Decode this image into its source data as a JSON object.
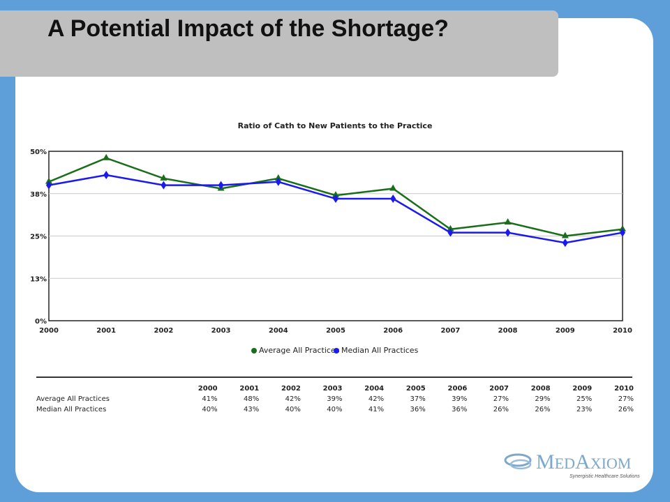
{
  "slide": {
    "title": "A Potential Impact of the Shortage?"
  },
  "colors": {
    "background": "#5e9fd9",
    "title_box": "#bfbfbf",
    "average_series": "#1a6e1a",
    "median_series": "#1a1aee"
  },
  "chart_data": {
    "type": "line",
    "title": "Ratio of Cath to New Patients to the Practice",
    "x": [
      "2000",
      "2001",
      "2002",
      "2003",
      "2004",
      "2005",
      "2006",
      "2007",
      "2008",
      "2009",
      "2010"
    ],
    "yticks": [
      "0%",
      "13%",
      "25%",
      "38%",
      "50%"
    ],
    "ylim": [
      0,
      50
    ],
    "grid": true,
    "legend_position": "bottom",
    "series": [
      {
        "name": "Average All Practices",
        "marker": "triangle",
        "values": [
          41,
          48,
          42,
          39,
          42,
          37,
          39,
          27,
          29,
          25,
          27
        ]
      },
      {
        "name": "Median All Practices",
        "marker": "diamond",
        "values": [
          40,
          43,
          40,
          40,
          41,
          36,
          36,
          26,
          26,
          23,
          26
        ]
      }
    ]
  },
  "table": {
    "headers": [
      "2000",
      "2001",
      "2002",
      "2003",
      "2004",
      "2005",
      "2006",
      "2007",
      "2008",
      "2009",
      "2010"
    ],
    "rows": [
      {
        "label": "Average All Practices",
        "values": [
          "41%",
          "48%",
          "42%",
          "39%",
          "42%",
          "37%",
          "39%",
          "27%",
          "29%",
          "25%",
          "27%"
        ]
      },
      {
        "label": "Median All Practices",
        "values": [
          "40%",
          "43%",
          "40%",
          "40%",
          "41%",
          "36%",
          "36%",
          "26%",
          "26%",
          "23%",
          "26%"
        ]
      }
    ]
  },
  "logo": {
    "name": "MedAxiom",
    "tagline": "Synergistic Healthcare Solutions",
    "icon": "swirl-logo-icon"
  }
}
